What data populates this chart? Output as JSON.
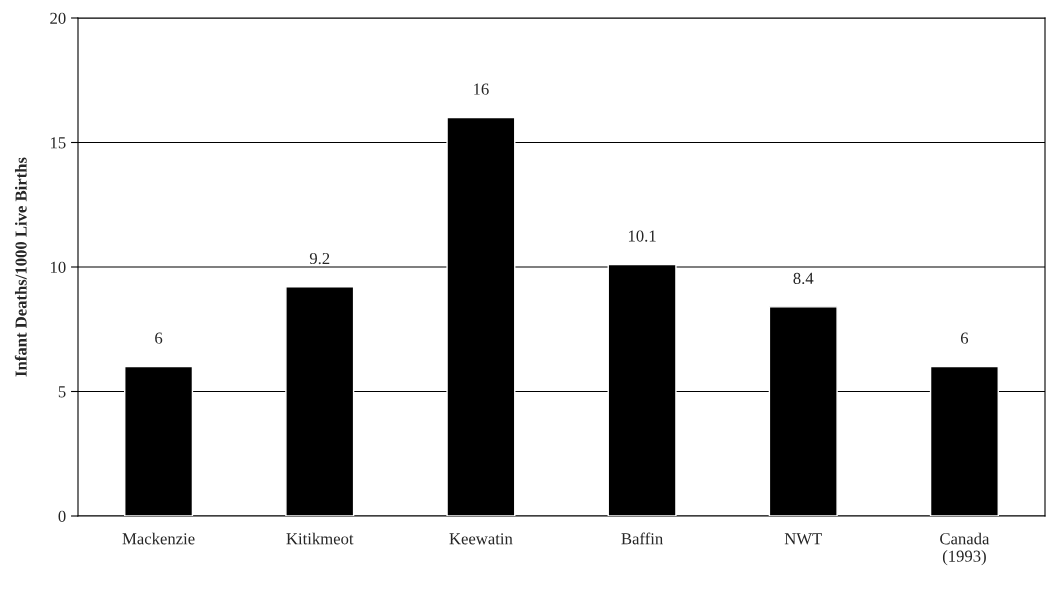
{
  "chart_data": {
    "type": "bar",
    "ylabel": "Infant Deaths/1000 Live Births",
    "categories": [
      "Mackenzie",
      "Kitikmeot",
      "Keewatin",
      "Baffin",
      "NWT",
      "Canada\n(1993)"
    ],
    "values": [
      6,
      9.2,
      16,
      10.1,
      8.4,
      6
    ],
    "color": "#000000",
    "ylim": [
      0,
      20
    ],
    "yticks": [
      0,
      5,
      10,
      15,
      20
    ],
    "grid": "y",
    "data_labels": true
  }
}
